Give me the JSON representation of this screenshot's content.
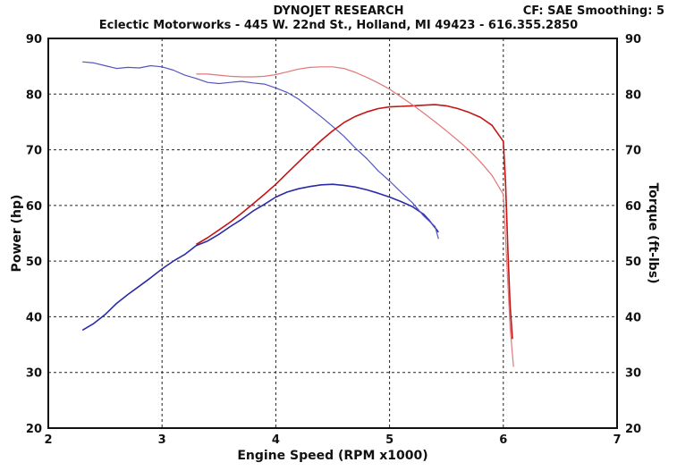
{
  "header": {
    "title": "DYNOJET RESEARCH",
    "subtitle": "Eclectic Motorworks - 445 W. 22nd St., Holland, MI  49423 - 616.355.2850",
    "cf": "CF: SAE  Smoothing: 5"
  },
  "chart_data": {
    "type": "line",
    "title": "DYNOJET RESEARCH",
    "xlabel": "Engine Speed (RPM x1000)",
    "ylabel_left": "Power (hp)",
    "ylabel_right": "Torque (ft-lbs)",
    "xlim": [
      2,
      7
    ],
    "ylim": [
      20,
      90
    ],
    "y2lim": [
      20,
      90
    ],
    "x_ticks": [
      "2",
      "3",
      "4",
      "5",
      "6",
      "7"
    ],
    "y_ticks": [
      "20",
      "30",
      "40",
      "50",
      "60",
      "70",
      "80",
      "90"
    ],
    "grid": true,
    "colors": {
      "blue": "#2b2ba8",
      "blue_light": "#5555c0",
      "red": "#c41414",
      "red_light": "#e07878"
    },
    "series": [
      {
        "axis": "left",
        "color": "blue",
        "x": [
          2.3,
          2.4,
          2.5,
          2.6,
          2.7,
          2.8,
          2.9,
          3.0,
          3.1,
          3.2,
          3.3,
          3.4,
          3.5,
          3.6,
          3.7,
          3.8,
          3.9,
          4.0,
          4.1,
          4.2,
          4.3,
          4.4,
          4.5,
          4.6,
          4.7,
          4.8,
          4.9,
          5.0,
          5.1,
          5.2,
          5.3,
          5.35,
          5.4,
          5.43
        ],
        "y": [
          37.6,
          38.8,
          40.4,
          42.4,
          44.0,
          45.5,
          47.0,
          48.6,
          50.0,
          51.2,
          52.8,
          53.6,
          54.8,
          56.2,
          57.5,
          59.0,
          60.2,
          61.5,
          62.4,
          63.0,
          63.4,
          63.7,
          63.8,
          63.6,
          63.3,
          62.8,
          62.2,
          61.5,
          60.7,
          59.8,
          58.4,
          57.3,
          56.0,
          55.2
        ]
      },
      {
        "axis": "right",
        "color": "blue_light",
        "x": [
          2.3,
          2.4,
          2.5,
          2.6,
          2.7,
          2.8,
          2.9,
          3.0,
          3.1,
          3.2,
          3.3,
          3.4,
          3.5,
          3.6,
          3.7,
          3.8,
          3.9,
          4.0,
          4.1,
          4.2,
          4.3,
          4.4,
          4.5,
          4.6,
          4.7,
          4.8,
          4.9,
          5.0,
          5.1,
          5.2,
          5.3,
          5.4,
          5.43
        ],
        "y": [
          85.8,
          85.6,
          85.1,
          84.6,
          84.8,
          84.7,
          85.1,
          84.9,
          84.3,
          83.4,
          82.8,
          82.1,
          81.9,
          82.1,
          82.3,
          82.0,
          81.8,
          81.1,
          80.3,
          79.1,
          77.5,
          75.9,
          74.2,
          72.4,
          70.3,
          68.4,
          66.2,
          64.4,
          62.4,
          60.5,
          58.1,
          56.2,
          54.0
        ]
      },
      {
        "axis": "left",
        "color": "red",
        "x": [
          3.3,
          3.4,
          3.5,
          3.6,
          3.7,
          3.8,
          3.9,
          4.0,
          4.1,
          4.2,
          4.3,
          4.4,
          4.5,
          4.6,
          4.7,
          4.8,
          4.9,
          5.0,
          5.1,
          5.2,
          5.3,
          5.4,
          5.5,
          5.6,
          5.7,
          5.8,
          5.9,
          6.0,
          6.02,
          6.04,
          6.06,
          6.08
        ],
        "y": [
          53.0,
          54.2,
          55.6,
          57.0,
          58.6,
          60.3,
          62.0,
          63.8,
          65.8,
          67.8,
          69.8,
          71.7,
          73.4,
          74.9,
          76.0,
          76.8,
          77.4,
          77.7,
          77.8,
          77.9,
          78.0,
          78.1,
          77.9,
          77.4,
          76.7,
          75.8,
          74.4,
          71.5,
          64.0,
          52.0,
          42.0,
          36.0
        ]
      },
      {
        "axis": "right",
        "color": "red_light",
        "x": [
          3.3,
          3.4,
          3.5,
          3.6,
          3.7,
          3.8,
          3.9,
          4.0,
          4.1,
          4.2,
          4.3,
          4.4,
          4.5,
          4.6,
          4.7,
          4.8,
          4.9,
          5.0,
          5.1,
          5.2,
          5.3,
          5.4,
          5.5,
          5.6,
          5.7,
          5.8,
          5.9,
          6.0,
          6.03,
          6.06,
          6.09
        ],
        "y": [
          83.6,
          83.6,
          83.4,
          83.2,
          83.1,
          83.1,
          83.2,
          83.5,
          84.0,
          84.5,
          84.8,
          84.9,
          84.9,
          84.6,
          83.9,
          83.0,
          82.0,
          80.9,
          79.5,
          78.1,
          76.6,
          75.0,
          73.4,
          71.7,
          69.9,
          67.8,
          65.4,
          62.0,
          50.0,
          38.0,
          31.0
        ]
      }
    ]
  }
}
